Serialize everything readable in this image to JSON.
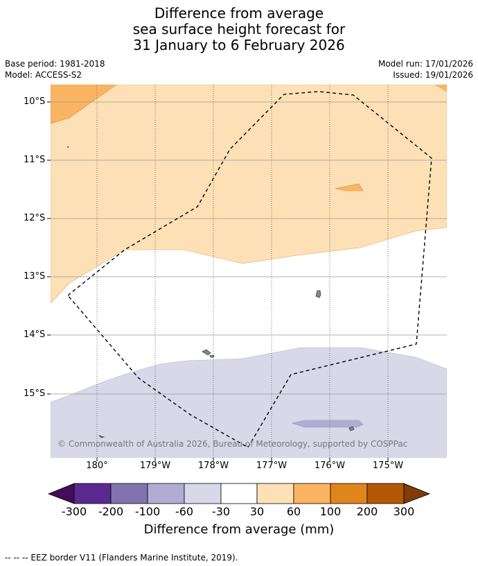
{
  "title": {
    "line1": "Difference from average",
    "line2": "sea surface height forecast for",
    "line3": "31 January to 6 February 2026"
  },
  "meta": {
    "base_period": "Base period: 1981-2018",
    "model": "Model: ACCESS-S2",
    "model_run": "Model run: 17/01/2026",
    "issued": "Issued: 19/01/2026"
  },
  "map": {
    "lat_labels": [
      "10°S",
      "11°S",
      "12°S",
      "13°S",
      "14°S",
      "15°S"
    ],
    "lon_labels": [
      "180°",
      "179°W",
      "178°W",
      "177°W",
      "176°W",
      "175°W"
    ],
    "copyright": "© Commonwealth of Australia 2026, Bureau of Meteorology, supported by COSPPac",
    "colors": {
      "light_orange": "#fde0b5",
      "orange": "#fbb562",
      "light_purple": "#d8d8e8",
      "purple": "#b2acd3",
      "land": "#888888"
    }
  },
  "colorbar": {
    "ticks": [
      "-300",
      "-200",
      "-100",
      "-60",
      "-30",
      "30",
      "60",
      "100",
      "200",
      "300"
    ],
    "colors": [
      "#440c5a",
      "#5a2a8e",
      "#8073ae",
      "#b2acd3",
      "#d8d8e8",
      "#ffffff",
      "#fde0b5",
      "#fbb562",
      "#e0841c",
      "#b35806",
      "#7f3b08"
    ],
    "title": "Difference from average (mm)"
  },
  "legend": {
    "text": "--  --  -- EEZ border V11 (Flanders Marine Institute, 2019)."
  }
}
